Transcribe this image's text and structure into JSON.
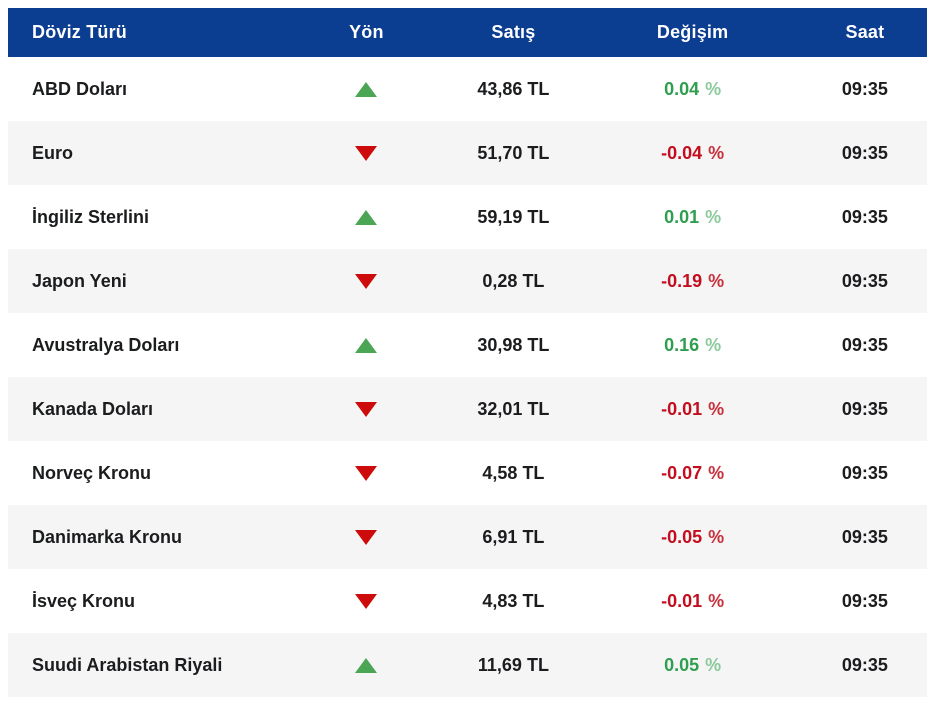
{
  "colors": {
    "header_bg": "#0b3d91",
    "header_text": "#ffffff",
    "row_alt_bg": "#f5f5f6",
    "text": "#1b1c1e",
    "up_arrow": "#4aa655",
    "down_arrow": "#ce0b0b",
    "change_pos": "#2f9e4f",
    "change_pos_unit": "#8cc99c",
    "change_neg": "#c40d1e",
    "change_neg_unit": "#c9303c"
  },
  "chart_data": {
    "type": "table",
    "columns": [
      {
        "key": "currency",
        "label": "Döviz Türü"
      },
      {
        "key": "direction",
        "label": "Yön"
      },
      {
        "key": "price",
        "label": "Satış"
      },
      {
        "key": "change",
        "label": "Değişim"
      },
      {
        "key": "time",
        "label": "Saat"
      }
    ],
    "rows": [
      {
        "currency": "ABD Doları",
        "direction": "up",
        "price": "43,86 TL",
        "change": "0.04",
        "unit": "%",
        "time": "09:35"
      },
      {
        "currency": "Euro",
        "direction": "down",
        "price": "51,70 TL",
        "change": "-0.04",
        "unit": "%",
        "time": "09:35"
      },
      {
        "currency": "İngiliz Sterlini",
        "direction": "up",
        "price": "59,19 TL",
        "change": "0.01",
        "unit": "%",
        "time": "09:35"
      },
      {
        "currency": "Japon Yeni",
        "direction": "down",
        "price": "0,28 TL",
        "change": "-0.19",
        "unit": "%",
        "time": "09:35"
      },
      {
        "currency": "Avustralya Doları",
        "direction": "up",
        "price": "30,98 TL",
        "change": "0.16",
        "unit": "%",
        "time": "09:35"
      },
      {
        "currency": "Kanada Doları",
        "direction": "down",
        "price": "32,01 TL",
        "change": "-0.01",
        "unit": "%",
        "time": "09:35"
      },
      {
        "currency": "Norveç Kronu",
        "direction": "down",
        "price": "4,58 TL",
        "change": "-0.07",
        "unit": "%",
        "time": "09:35"
      },
      {
        "currency": "Danimarka Kronu",
        "direction": "down",
        "price": "6,91 TL",
        "change": "-0.05",
        "unit": "%",
        "time": "09:35"
      },
      {
        "currency": "İsveç Kronu",
        "direction": "down",
        "price": "4,83 TL",
        "change": "-0.01",
        "unit": "%",
        "time": "09:35"
      },
      {
        "currency": "Suudi Arabistan Riyali",
        "direction": "up",
        "price": "11,69 TL",
        "change": "0.05",
        "unit": "%",
        "time": "09:35"
      }
    ]
  }
}
